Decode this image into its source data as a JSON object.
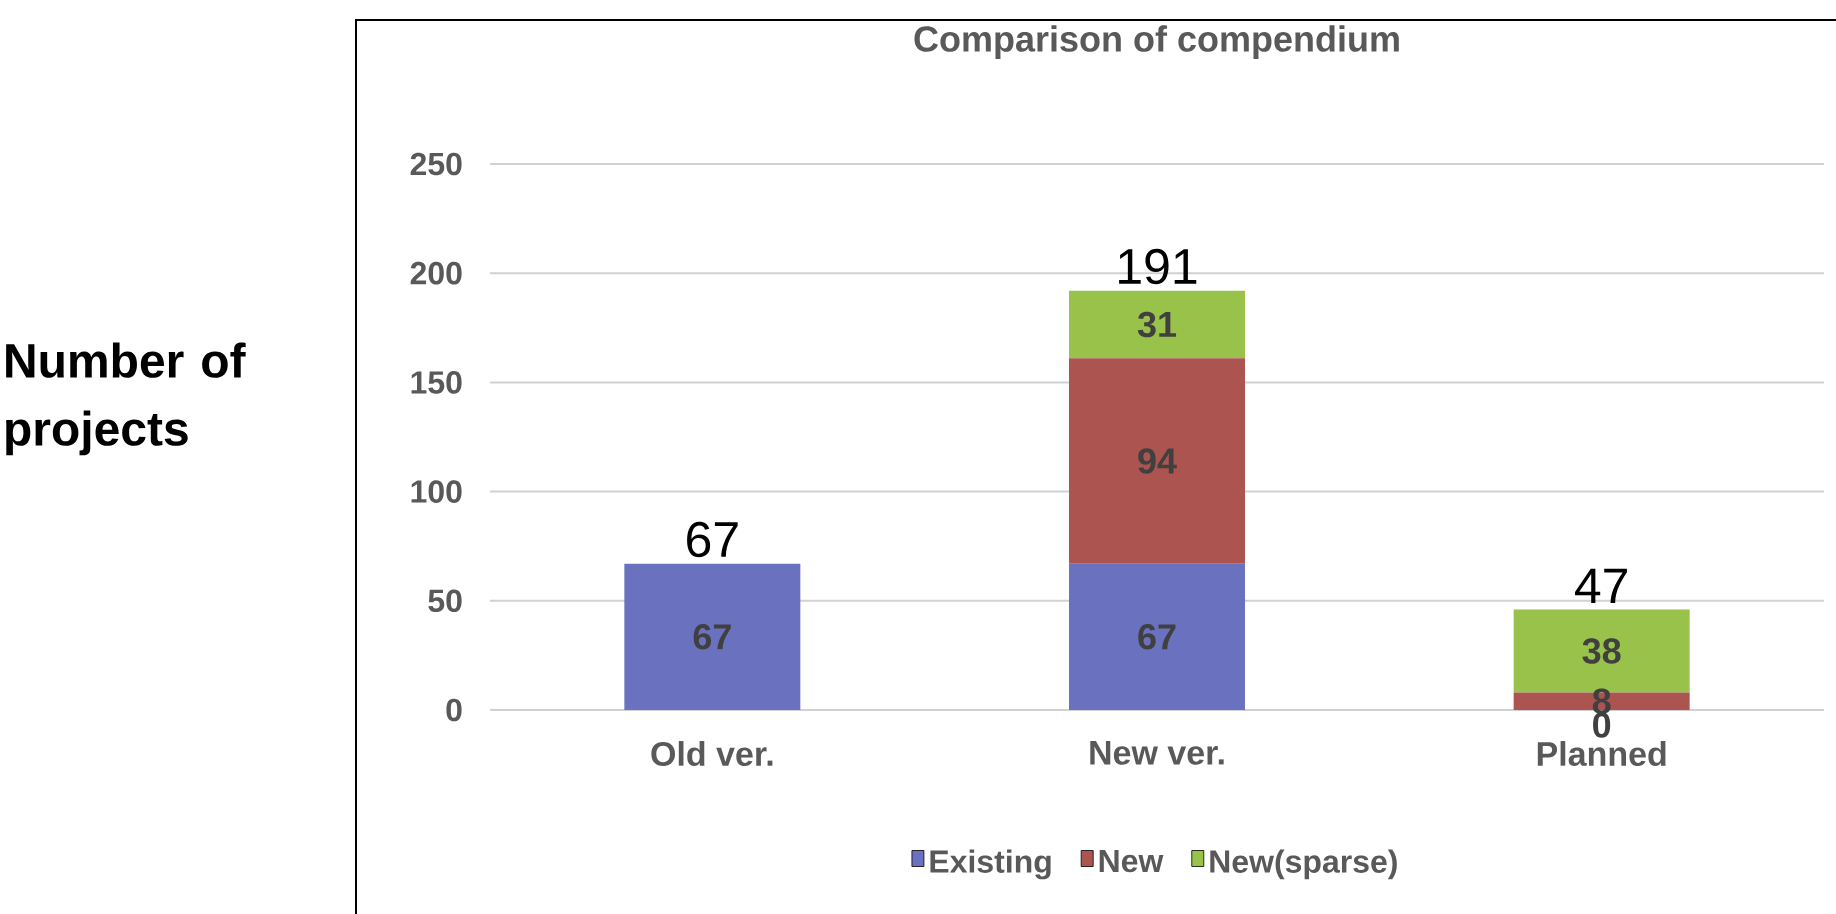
{
  "chart_data": {
    "type": "bar",
    "title": "Comparison of compendium",
    "ylabel": "Number of projects",
    "categories": [
      "Old ver.",
      "New ver.",
      "Planned"
    ],
    "series": [
      {
        "name": "Existing",
        "color": "#6a72c0",
        "values": [
          67,
          67,
          0
        ],
        "value_labels": [
          "67",
          "67",
          "0"
        ]
      },
      {
        "name": "New",
        "color": "#ac5450",
        "values": [
          0,
          94,
          8
        ],
        "value_labels": [
          null,
          "94",
          "8"
        ]
      },
      {
        "name": "New(sparse)",
        "color": "#98c24a",
        "values": [
          0,
          31,
          38
        ],
        "value_labels": [
          null,
          "31",
          "38"
        ]
      }
    ],
    "stacked": true,
    "totals": [
      "67",
      "191",
      "47"
    ],
    "ylim": [
      0,
      250
    ],
    "yticks": [
      0,
      50,
      100,
      150,
      200,
      250
    ],
    "grid": "y",
    "legend": "bottom"
  }
}
